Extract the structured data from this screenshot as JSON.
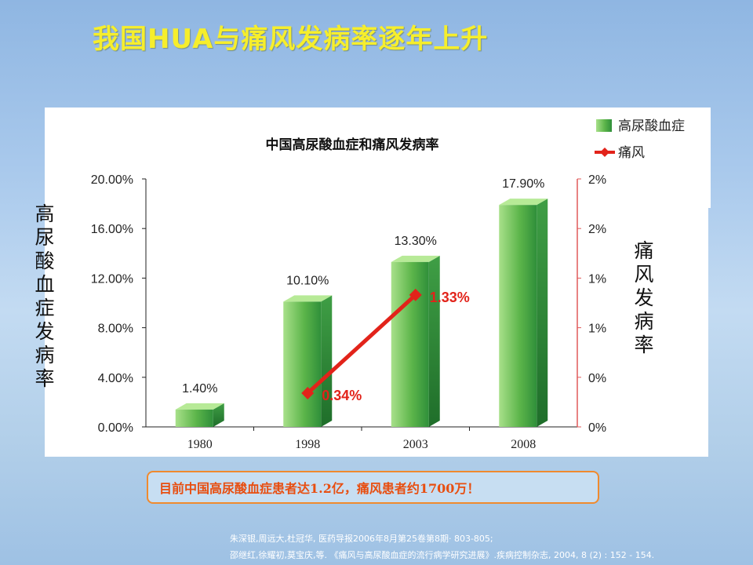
{
  "slide": {
    "title": "我国HUA与痛风发病率逐年上升",
    "left_axis_title": "高尿酸血症发病率",
    "right_axis_title": "痛风发病率",
    "note": "目前中国高尿酸血症患者达1.2亿，痛风患者约1700万！",
    "references": [
      "朱深银,周远大,杜冠华, 医药导报2006年8月第25卷第8期· 803-805;",
      "邵继红,徐耀初,莫宝庆,等. 《痛风与高尿酸血症的流行病学研究进展》.疾病控制杂志, 2004, 8 (2) : 152 - 154."
    ]
  },
  "colors": {
    "title": "#f6ee2c",
    "bar_light": "#8dd36d",
    "bar_dark": "#2f8f3a",
    "line": "#e2231a",
    "axis": "#222222",
    "right_axis": "#e05a5a",
    "note_border": "#f08a2e",
    "note_text": "#e84e10"
  },
  "chart_data": {
    "type": "bar",
    "title": "中国高尿酸血症和痛风发病率",
    "categories": [
      "1980",
      "1998",
      "2003",
      "2008"
    ],
    "series": [
      {
        "name": "高尿酸血症",
        "type": "bar",
        "axis": "left",
        "values": [
          1.4,
          10.1,
          13.3,
          17.9
        ],
        "labels": [
          "1.40%",
          "10.10%",
          "13.30%",
          "17.90%"
        ]
      },
      {
        "name": "痛风",
        "type": "line",
        "axis": "right",
        "values": [
          null,
          0.34,
          1.33,
          null
        ],
        "labels": [
          "",
          "0.34%",
          "1.33%",
          ""
        ]
      }
    ],
    "left_axis": {
      "ylim": [
        0,
        20
      ],
      "ticks": [
        "0.00%",
        "4.00%",
        "8.00%",
        "12.00%",
        "16.00%",
        "20.00%"
      ]
    },
    "right_axis": {
      "ylim": [
        0,
        2.5
      ],
      "ticks": [
        "0%",
        "0%",
        "1%",
        "1%",
        "2%",
        "2%"
      ]
    },
    "legend_position": "top-right",
    "grid": false
  }
}
